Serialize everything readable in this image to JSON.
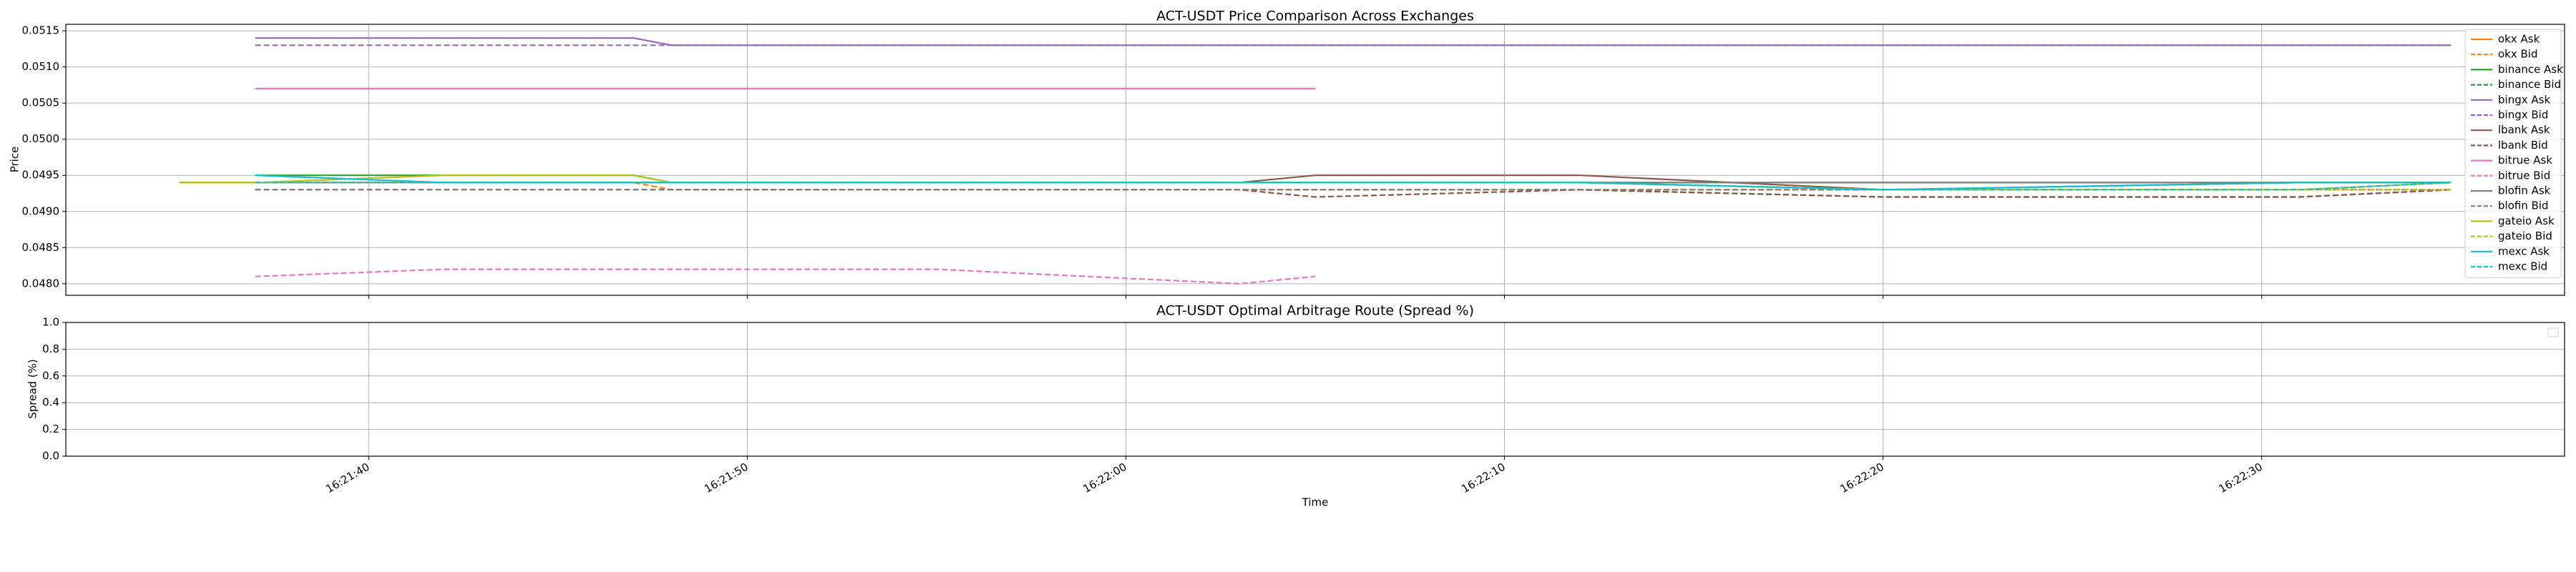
{
  "chart_data": [
    {
      "type": "line",
      "title": "ACT-USDT Price Comparison Across Exchanges",
      "ylabel": "Price",
      "x": [
        "16:21:35",
        "16:21:37",
        "16:21:42",
        "16:21:47",
        "16:21:48",
        "16:21:55",
        "16:22:03",
        "16:22:05",
        "16:22:12",
        "16:22:20",
        "16:22:31",
        "16:22:35"
      ],
      "xlim": [
        "16:21:32",
        "16:22:38"
      ],
      "xticks": [
        "16:21:40",
        "16:21:50",
        "16:22:00",
        "16:22:10",
        "16:22:20",
        "16:22:30"
      ],
      "ylim": [
        0.04784,
        0.05159
      ],
      "yticks": [
        {
          "value": 0.048,
          "label": "0.0480"
        },
        0.0485,
        {
          "value": 0.049,
          "label": "0.0490"
        },
        0.0495,
        {
          "value": 0.05,
          "label": "0.0500"
        },
        0.0505,
        {
          "value": 0.051,
          "label": "0.0510"
        },
        0.0515
      ],
      "grid": true,
      "legend": "upper right",
      "series": [
        {
          "name": "okx Ask",
          "color": "#ff7f0e",
          "dashed": false,
          "values": [
            0.0494,
            0.0494,
            0.0494,
            0.0494,
            0.0494,
            0.0494,
            0.0494,
            0.0494,
            0.0494,
            0.0493,
            0.0493,
            0.0494
          ]
        },
        {
          "name": "okx Bid",
          "color": "#ff7f0e",
          "dashed": true,
          "values": [
            0.0494,
            0.0494,
            0.0494,
            0.0494,
            0.0493,
            0.0493,
            0.0493,
            0.0493,
            0.0493,
            0.0493,
            0.0493,
            0.0493
          ]
        },
        {
          "name": "binance Ask",
          "color": "#2ca02c",
          "dashed": false,
          "values": [
            null,
            0.0495,
            0.0495,
            0.0495,
            0.0494,
            0.0494,
            0.0494,
            0.0494,
            0.0494,
            0.0494,
            0.0494,
            0.0494
          ]
        },
        {
          "name": "binance Bid",
          "color": "#2ca02c",
          "dashed": true,
          "values": [
            null,
            0.0493,
            0.0493,
            0.0493,
            0.0493,
            0.0493,
            0.0493,
            0.0493,
            0.0493,
            0.0492,
            0.0492,
            0.0493
          ]
        },
        {
          "name": "bingx Ask",
          "color": "#9467bd",
          "dashed": false,
          "values": [
            null,
            0.0514,
            0.0514,
            0.0514,
            0.0513,
            0.0513,
            0.0513,
            0.0513,
            0.0513,
            0.0513,
            0.0513,
            0.0513
          ]
        },
        {
          "name": "bingx Bid",
          "color": "#9467bd",
          "dashed": true,
          "values": [
            null,
            0.0513,
            0.0513,
            0.0513,
            0.0513,
            0.0513,
            0.0513,
            0.0513,
            0.0513,
            0.0513,
            0.0513,
            0.0513
          ]
        },
        {
          "name": "lbank Ask",
          "color": "#8c564b",
          "dashed": false,
          "values": [
            null,
            0.0494,
            0.0494,
            0.0494,
            0.0494,
            0.0494,
            0.0494,
            0.0495,
            0.0495,
            0.0493,
            0.0494,
            0.0494
          ]
        },
        {
          "name": "lbank Bid",
          "color": "#8c564b",
          "dashed": true,
          "values": [
            null,
            0.0493,
            0.0493,
            0.0493,
            0.0493,
            0.0493,
            0.0493,
            0.0492,
            0.0493,
            0.0492,
            0.0492,
            0.0493
          ]
        },
        {
          "name": "bitrue Ask",
          "color": "#e377c2",
          "dashed": false,
          "values": [
            null,
            0.0507,
            0.0507,
            0.0507,
            0.0507,
            0.0507,
            0.0507,
            0.0507,
            null,
            null,
            null,
            null
          ]
        },
        {
          "name": "bitrue Bid",
          "color": "#e377c2",
          "dashed": true,
          "values": [
            null,
            0.0481,
            0.0482,
            0.0482,
            0.0482,
            0.0482,
            0.048,
            0.0481,
            null,
            null,
            null,
            null
          ]
        },
        {
          "name": "blofin Ask",
          "color": "#7f7f7f",
          "dashed": false,
          "values": [
            null,
            0.0494,
            0.0494,
            0.0494,
            0.0494,
            0.0494,
            0.0494,
            0.0494,
            0.0494,
            0.0494,
            0.0494,
            0.0494
          ]
        },
        {
          "name": "blofin Bid",
          "color": "#7f7f7f",
          "dashed": true,
          "values": [
            null,
            0.0493,
            0.0493,
            0.0493,
            0.0493,
            0.0493,
            0.0493,
            0.0493,
            0.0493,
            0.0493,
            0.0493,
            0.0493
          ]
        },
        {
          "name": "gateio Ask",
          "color": "#bcbd22",
          "dashed": false,
          "values": [
            0.0494,
            0.0494,
            0.0495,
            0.0495,
            0.0494,
            0.0494,
            0.0494,
            0.0494,
            0.0494,
            0.0493,
            0.0493,
            0.0494
          ]
        },
        {
          "name": "gateio Bid",
          "color": "#bcbd22",
          "dashed": true,
          "values": [
            0.0494,
            0.0494,
            0.0494,
            0.0494,
            0.0494,
            0.0494,
            0.0494,
            0.0494,
            0.0494,
            0.0493,
            0.0493,
            0.0493
          ]
        },
        {
          "name": "mexc Ask",
          "color": "#17becf",
          "dashed": false,
          "values": [
            null,
            0.0495,
            0.0494,
            0.0494,
            0.0494,
            0.0494,
            0.0494,
            0.0494,
            0.0494,
            0.0493,
            0.0494,
            0.0494
          ]
        },
        {
          "name": "mexc Bid",
          "color": "#17becf",
          "dashed": true,
          "values": [
            null,
            0.0494,
            0.0494,
            0.0494,
            0.0494,
            0.0494,
            0.0494,
            0.0494,
            0.0494,
            0.0493,
            0.0493,
            0.0494
          ]
        }
      ]
    },
    {
      "type": "line",
      "title": "ACT-USDT Optimal Arbitrage Route (Spread %)",
      "ylabel": "Spread (%)",
      "xlabel": "Time",
      "xlim": [
        "16:21:32",
        "16:22:38"
      ],
      "xticks": [
        "16:21:40",
        "16:21:50",
        "16:22:00",
        "16:22:10",
        "16:22:20",
        "16:22:30"
      ],
      "ylim": [
        0,
        1
      ],
      "yticks": [
        {
          "value": 0,
          "label": "0.0"
        },
        0.2,
        0.4,
        0.6,
        0.8,
        {
          "value": 1,
          "label": "1.0"
        }
      ],
      "grid": true,
      "series": []
    }
  ]
}
